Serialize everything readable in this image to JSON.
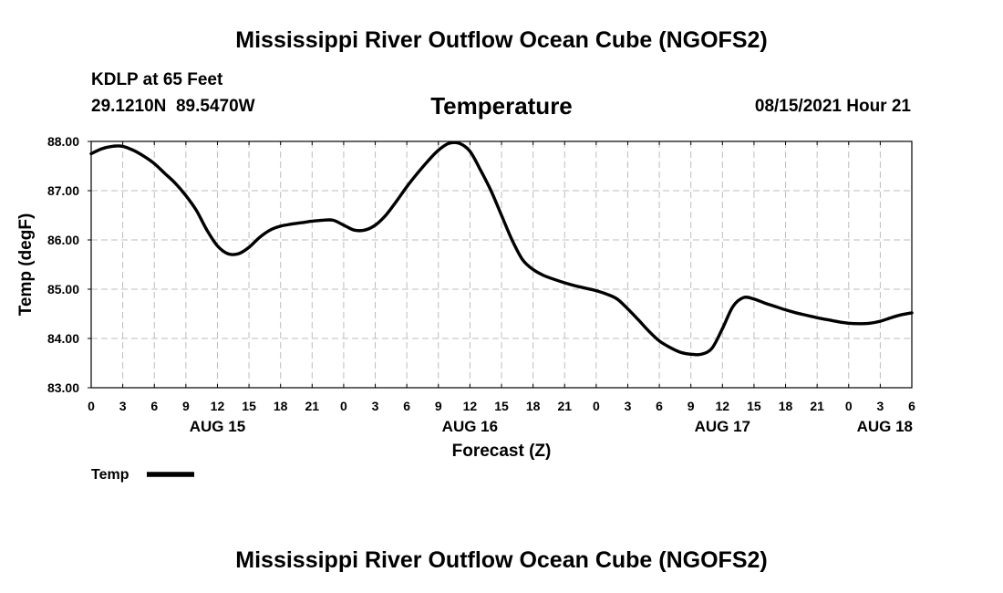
{
  "header": {
    "title": "Mississippi River Outflow Ocean Cube (NGOFS2)",
    "station": "KDLP at 65 Feet",
    "coords": "29.1210N  89.5470W",
    "timestamp": "08/15/2021 Hour 21"
  },
  "footer": {
    "title": "Mississippi River Outflow Ocean Cube (NGOFS2)"
  },
  "colors": {
    "line": "#000000",
    "grid": "#bdbdbd",
    "background": "#ffffff"
  },
  "chart_data": {
    "type": "line",
    "title": "Temperature",
    "xlabel": "Forecast (Z)",
    "ylabel": "Temp (degF)",
    "xlim": [
      0,
      78
    ],
    "ylim": [
      83,
      88
    ],
    "grid": true,
    "legend": {
      "position": "bottom-left",
      "entries": [
        "Temp"
      ]
    },
    "x_ticks": [
      0,
      3,
      6,
      9,
      12,
      15,
      18,
      21,
      24,
      27,
      30,
      33,
      36,
      39,
      42,
      45,
      48,
      51,
      54,
      57,
      60,
      63,
      66,
      69,
      72,
      75,
      78
    ],
    "x_tick_labels": [
      "0",
      "3",
      "6",
      "9",
      "12",
      "15",
      "18",
      "21",
      "0",
      "3",
      "6",
      "9",
      "12",
      "15",
      "18",
      "21",
      "0",
      "3",
      "6",
      "9",
      "12",
      "15",
      "18",
      "21",
      "0",
      "3",
      "6"
    ],
    "y_ticks": [
      83,
      84,
      85,
      86,
      87,
      88
    ],
    "y_tick_labels": [
      "83.00",
      "84.00",
      "85.00",
      "86.00",
      "87.00",
      "88.00"
    ],
    "day_labels": [
      {
        "x": 12,
        "label": "AUG 15"
      },
      {
        "x": 36,
        "label": "AUG 16"
      },
      {
        "x": 60,
        "label": "AUG 17"
      },
      {
        "x": 78,
        "label": "AUG 18"
      }
    ],
    "series": [
      {
        "name": "Temp",
        "x": [
          0,
          1,
          2,
          3,
          4,
          5,
          6,
          7,
          8,
          9,
          10,
          11,
          12,
          13,
          14,
          15,
          16,
          17,
          18,
          19,
          20,
          21,
          22,
          23,
          24,
          25,
          26,
          27,
          28,
          29,
          30,
          31,
          32,
          33,
          34,
          35,
          36,
          37,
          38,
          39,
          40,
          41,
          42,
          43,
          44,
          45,
          46,
          47,
          48,
          49,
          50,
          51,
          52,
          53,
          54,
          55,
          56,
          57,
          58,
          59,
          60,
          61,
          62,
          63,
          64,
          65,
          66,
          67,
          68,
          69,
          70,
          71,
          72,
          73,
          74,
          75,
          76,
          77,
          78
        ],
        "values": [
          87.75,
          87.85,
          87.9,
          87.9,
          87.82,
          87.7,
          87.55,
          87.35,
          87.15,
          86.9,
          86.6,
          86.2,
          85.88,
          85.72,
          85.72,
          85.85,
          86.05,
          86.2,
          86.28,
          86.32,
          86.35,
          86.38,
          86.4,
          86.4,
          86.3,
          86.2,
          86.2,
          86.3,
          86.5,
          86.78,
          87.08,
          87.35,
          87.6,
          87.82,
          87.96,
          87.96,
          87.8,
          87.42,
          87.0,
          86.5,
          86.0,
          85.6,
          85.4,
          85.28,
          85.2,
          85.13,
          85.07,
          85.02,
          84.97,
          84.9,
          84.8,
          84.6,
          84.38,
          84.15,
          83.95,
          83.82,
          83.72,
          83.68,
          83.68,
          83.8,
          84.2,
          84.65,
          84.83,
          84.8,
          84.72,
          84.65,
          84.58,
          84.52,
          84.47,
          84.42,
          84.38,
          84.34,
          84.31,
          84.3,
          84.31,
          84.35,
          84.42,
          84.48,
          84.52
        ]
      }
    ]
  }
}
